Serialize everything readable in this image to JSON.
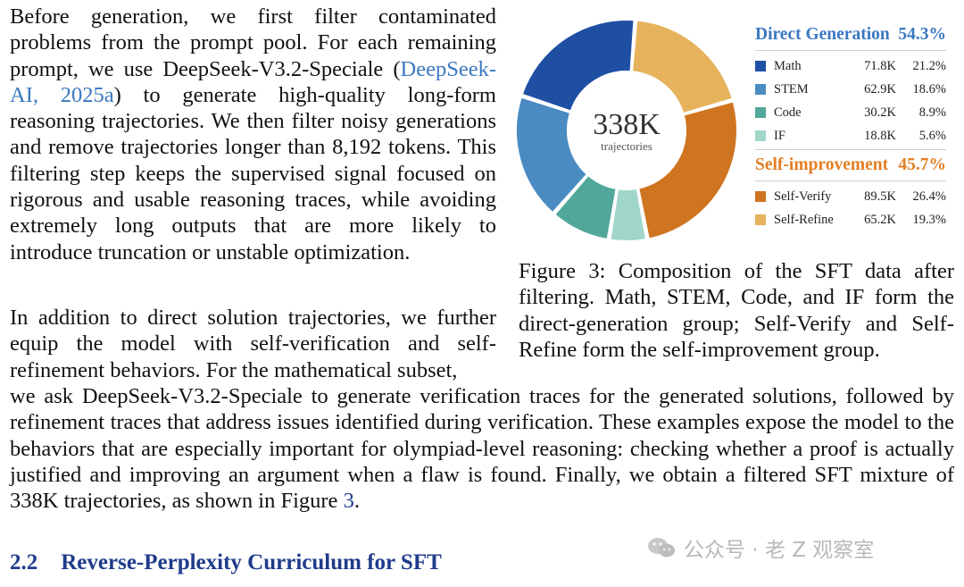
{
  "text": {
    "p1_before": "Before generation, we first filter contaminated problems from the prompt pool. For each remaining prompt, we use DeepSeek-V3.2-Speciale (",
    "p1_cite": "DeepSeek-AI, 2025a",
    "p1_after": ") to generate high-quality long-form reasoning trajectories. We then filter noisy generations and remove trajectories longer than 8,192 tokens. This filtering step keeps the supervised signal focused on rigorous and usable reasoning traces, while avoiding extremely long outputs that are more likely to introduce truncation or unstable optimization.",
    "p2_a": "In addition to direct solution trajectories, we further equip the model with self-verification and self-refinement behaviors. For the mathematical subset,",
    "p2_b": "we ask DeepSeek-V3.2-Speciale to generate verification traces for the generated solutions, followed by refinement traces that address issues identified during verification. These examples expose the model to the behaviors that are especially important for olympiad-level reasoning: checking whether a proof is actually justified and improving an argument when a flaw is found. Finally, we obtain a filtered SFT mixture of 338K trajectories, as shown in Figure ",
    "p2_fig_ref": "3",
    "p2_end": "."
  },
  "figure": {
    "caption": "Figure 3: Composition of the SFT data after filtering. Math, STEM, Code, and IF form the direct-generation group; Self-Verify and Self-Refine form the self-improvement group.",
    "center_value": "338K",
    "center_label": "trajectories"
  },
  "section": {
    "number": "2.2",
    "title": "Reverse-Perplexity Curriculum for SFT"
  },
  "watermark": {
    "text": "公众号 · 老 Z 观察室",
    "icon": "wechat-icon"
  },
  "chart_data": {
    "type": "pie",
    "donut": true,
    "center_text": "338K",
    "center_subtext": "trajectories",
    "groups": [
      {
        "name": "Direct Generation",
        "percent": "54.3%",
        "color": "#3a78c2",
        "items": [
          {
            "label": "Math",
            "count": "71.8K",
            "percent": "21.2%",
            "value": 21.2,
            "color": "#1f4fa3"
          },
          {
            "label": "STEM",
            "count": "62.9K",
            "percent": "18.6%",
            "value": 18.6,
            "color": "#4a8cc2"
          },
          {
            "label": "Code",
            "count": "30.2K",
            "percent": "8.9%",
            "value": 8.9,
            "color": "#52a79b"
          },
          {
            "label": "IF",
            "count": "18.8K",
            "percent": "5.6%",
            "value": 5.6,
            "color": "#9fd6c9"
          }
        ]
      },
      {
        "name": "Self-improvement",
        "percent": "45.7%",
        "color": "#e37f24",
        "items": [
          {
            "label": "Self-Verify",
            "count": "89.5K",
            "percent": "26.4%",
            "value": 26.4,
            "color": "#cf7420"
          },
          {
            "label": "Self-Refine",
            "count": "65.2K",
            "percent": "19.3%",
            "value": 19.3,
            "color": "#e6b35c"
          }
        ]
      }
    ]
  }
}
